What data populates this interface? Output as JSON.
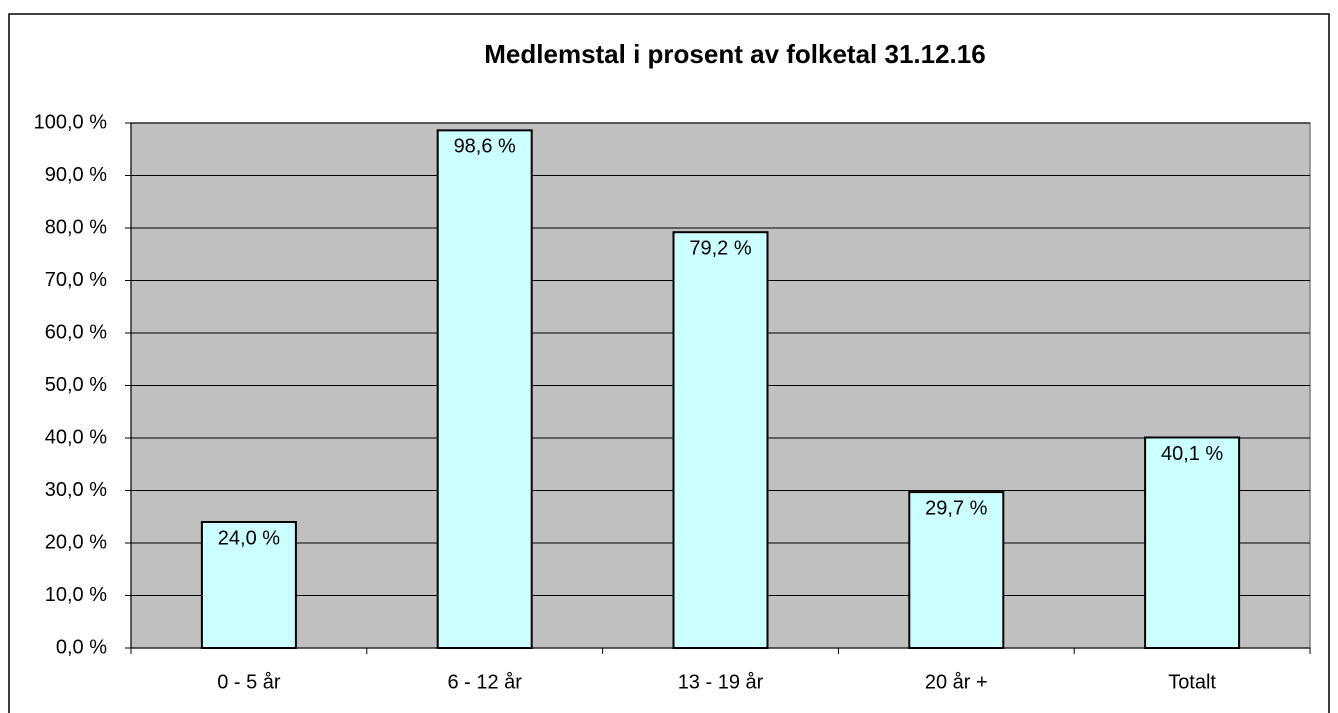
{
  "chart_data": {
    "type": "bar",
    "title": "Medlemstal i prosent av folketal 31.12.16",
    "categories": [
      "0 - 5 år",
      "6 - 12 år",
      "13 - 19 år",
      "20 år +",
      "Totalt"
    ],
    "values": [
      24.0,
      98.6,
      79.2,
      29.7,
      40.1
    ],
    "value_labels": [
      "24,0 %",
      "98,6 %",
      "79,2 %",
      "29,7 %",
      "40,1 %"
    ],
    "color": "#ccffff",
    "ylim": [
      0,
      100
    ],
    "yticks": [
      {
        "value": 0,
        "label": "0,0 %"
      },
      {
        "value": 10,
        "label": "10,0 %"
      },
      {
        "value": 20,
        "label": "20,0 %"
      },
      {
        "value": 30,
        "label": "30,0 %"
      },
      {
        "value": 40,
        "label": "40,0 %"
      },
      {
        "value": 50,
        "label": "50,0 %"
      },
      {
        "value": 60,
        "label": "60,0 %"
      },
      {
        "value": 70,
        "label": "70,0 %"
      },
      {
        "value": 80,
        "label": "80,0 %"
      },
      {
        "value": 90,
        "label": "90,0 %"
      },
      {
        "value": 100,
        "label": "100,0 %"
      }
    ],
    "grid": true
  }
}
